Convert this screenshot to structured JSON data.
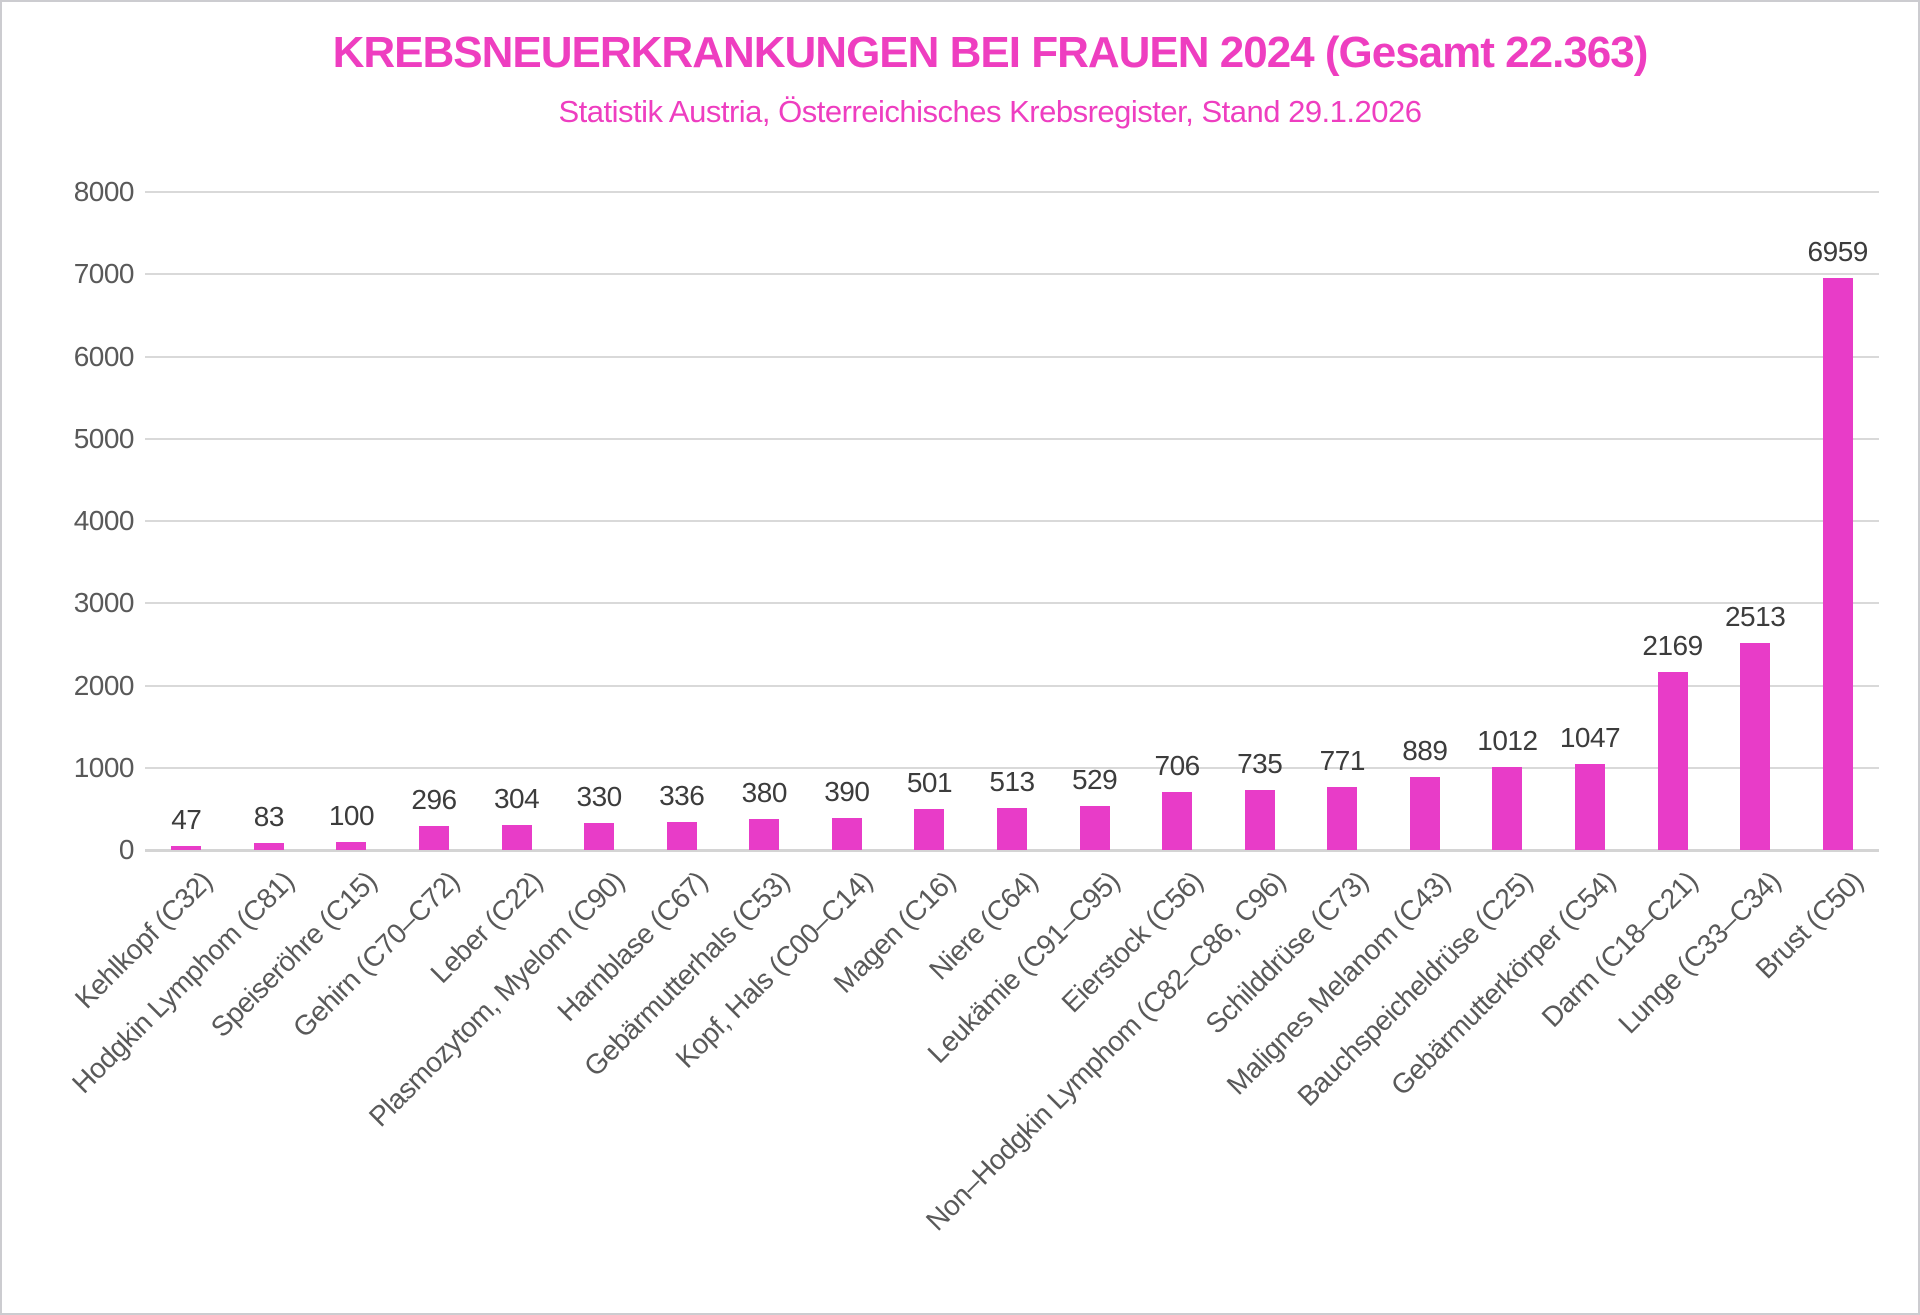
{
  "colors": {
    "accent": "#E83CC8",
    "title": "#EE3EC0",
    "grid": "#D9D9D9",
    "axis_text": "#595959",
    "value_text": "#3C3C3C"
  },
  "chart_data": {
    "type": "bar",
    "title": "KREBSNEUERKRANKUNGEN BEI FRAUEN 2024 (Gesamt 22.363)",
    "subtitle": "Statistik Austria, Österreichisches Krebsregister, Stand 29.1.2026",
    "categories": [
      "Kehlkopf (C32)",
      "Hodgkin Lymphom (C81)",
      "Speiseröhre (C15)",
      "Gehirn (C70–C72)",
      "Leber (C22)",
      "Plasmozytom, Myelom (C90)",
      "Harnblase (C67)",
      "Gebärmutterhals (C53)",
      "Kopf, Hals (C00–C14)",
      "Magen (C16)",
      "Niere (C64)",
      "Leukämie (C91–C95)",
      "Eierstock (C56)",
      "Non–Hodgkin Lymphom (C82–C86, C96)",
      "Schilddrüse (C73)",
      "Malignes Melanom (C43)",
      "Bauchspeicheldrüse (C25)",
      "Gebärmutterkörper (C54)",
      "Darm (C18–C21)",
      "Lunge (C33–C34)",
      "Brust (C50)"
    ],
    "values": [
      47,
      83,
      100,
      296,
      304,
      330,
      336,
      380,
      390,
      501,
      513,
      529,
      706,
      735,
      771,
      889,
      1012,
      1047,
      2169,
      2513,
      6959
    ],
    "yticks": [
      0,
      1000,
      2000,
      3000,
      4000,
      5000,
      6000,
      7000,
      8000
    ],
    "ylim": [
      0,
      8000
    ],
    "xlabel": "",
    "ylabel": "",
    "grid": "horizontal",
    "legend": "none",
    "data_labels": true,
    "bar_color": "#E83CC8"
  }
}
